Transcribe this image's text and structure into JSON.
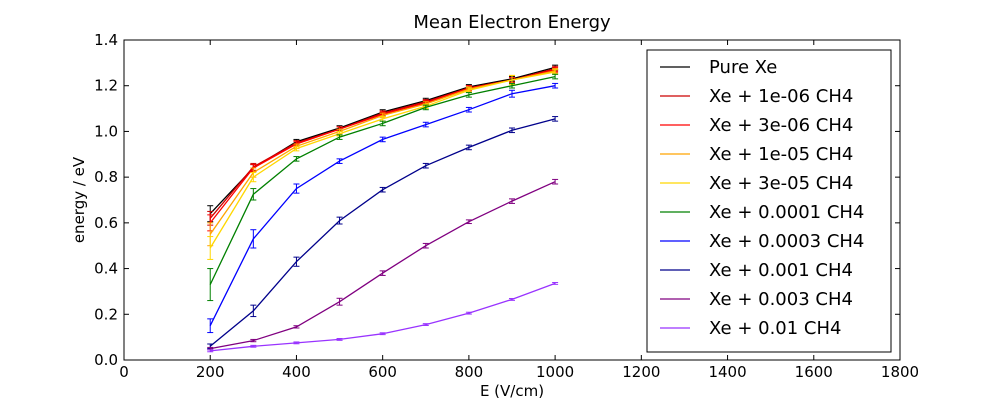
{
  "chart_data": {
    "type": "line",
    "title": "Mean Electron Energy",
    "xlabel": "E (V/cm)",
    "ylabel": "energy / eV",
    "xlim": [
      0,
      1800
    ],
    "ylim": [
      0,
      1.4
    ],
    "xticks": [
      0,
      200,
      400,
      600,
      800,
      1000,
      1200,
      1400,
      1600,
      1800
    ],
    "yticks": [
      0.0,
      0.2,
      0.4,
      0.6,
      0.8,
      1.0,
      1.2,
      1.4
    ],
    "xtick_labels": [
      "0",
      "200",
      "400",
      "600",
      "800",
      "1000",
      "1200",
      "1400",
      "1600",
      "1800"
    ],
    "ytick_labels": [
      "0.0",
      "0.2",
      "0.4",
      "0.6",
      "0.8",
      "1.0",
      "1.2",
      "1.4"
    ],
    "grid": false,
    "legend_position": "upper right",
    "x": [
      200,
      300,
      400,
      500,
      600,
      700,
      800,
      900,
      1000
    ],
    "series": [
      {
        "name": "Pure Xe",
        "color": "#000000",
        "values": [
          0.64,
          0.84,
          0.955,
          1.015,
          1.085,
          1.135,
          1.195,
          1.23,
          1.28
        ],
        "errors": [
          0.035,
          0.015,
          0.01,
          0.01,
          0.01,
          0.01,
          0.01,
          0.01,
          0.01
        ]
      },
      {
        "name": "Xe + 1e-06 CH4",
        "color": "#cc0000",
        "values": [
          0.62,
          0.845,
          0.95,
          1.01,
          1.08,
          1.13,
          1.19,
          1.225,
          1.275
        ],
        "errors": [
          0.03,
          0.015,
          0.01,
          0.01,
          0.01,
          0.01,
          0.01,
          0.01,
          0.01
        ]
      },
      {
        "name": "Xe + 3e-06 CH4",
        "color": "#ff0000",
        "values": [
          0.6,
          0.84,
          0.945,
          1.01,
          1.075,
          1.125,
          1.19,
          1.225,
          1.27
        ],
        "errors": [
          0.035,
          0.015,
          0.01,
          0.01,
          0.01,
          0.01,
          0.01,
          0.01,
          0.01
        ]
      },
      {
        "name": "Xe + 1e-05 CH4",
        "color": "#ffa500",
        "values": [
          0.55,
          0.82,
          0.935,
          1.0,
          1.07,
          1.12,
          1.185,
          1.225,
          1.265
        ],
        "errors": [
          0.05,
          0.02,
          0.01,
          0.01,
          0.01,
          0.01,
          0.01,
          0.02,
          0.01
        ]
      },
      {
        "name": "Xe + 3e-05 CH4",
        "color": "#ffd700",
        "values": [
          0.49,
          0.8,
          0.925,
          0.99,
          1.055,
          1.11,
          1.18,
          1.225,
          1.26
        ],
        "errors": [
          0.05,
          0.02,
          0.01,
          0.01,
          0.01,
          0.01,
          0.01,
          0.02,
          0.01
        ]
      },
      {
        "name": "Xe + 0.0001 CH4",
        "color": "#008000",
        "values": [
          0.33,
          0.725,
          0.88,
          0.975,
          1.035,
          1.105,
          1.16,
          1.2,
          1.24
        ],
        "errors": [
          0.07,
          0.025,
          0.01,
          0.01,
          0.01,
          0.01,
          0.01,
          0.01,
          0.01
        ]
      },
      {
        "name": "Xe + 0.0003 CH4",
        "color": "#0000ff",
        "values": [
          0.15,
          0.53,
          0.75,
          0.87,
          0.965,
          1.03,
          1.095,
          1.165,
          1.2
        ],
        "errors": [
          0.03,
          0.04,
          0.02,
          0.01,
          0.01,
          0.01,
          0.01,
          0.015,
          0.01
        ]
      },
      {
        "name": "Xe + 0.001 CH4",
        "color": "#00008b",
        "values": [
          0.06,
          0.215,
          0.43,
          0.61,
          0.745,
          0.85,
          0.93,
          1.005,
          1.055
        ],
        "errors": [
          0.01,
          0.025,
          0.02,
          0.015,
          0.01,
          0.01,
          0.01,
          0.01,
          0.01
        ]
      },
      {
        "name": "Xe + 0.003 CH4",
        "color": "#800080",
        "values": [
          0.05,
          0.085,
          0.145,
          0.255,
          0.38,
          0.5,
          0.605,
          0.695,
          0.78
        ],
        "errors": [
          0.005,
          0.005,
          0.005,
          0.015,
          0.01,
          0.01,
          0.008,
          0.01,
          0.01
        ]
      },
      {
        "name": "Xe + 0.01 CH4",
        "color": "#9933ff",
        "values": [
          0.04,
          0.06,
          0.075,
          0.09,
          0.115,
          0.155,
          0.205,
          0.265,
          0.335
        ],
        "errors": [
          0.004,
          0.004,
          0.004,
          0.004,
          0.004,
          0.004,
          0.004,
          0.004,
          0.004
        ]
      }
    ]
  }
}
